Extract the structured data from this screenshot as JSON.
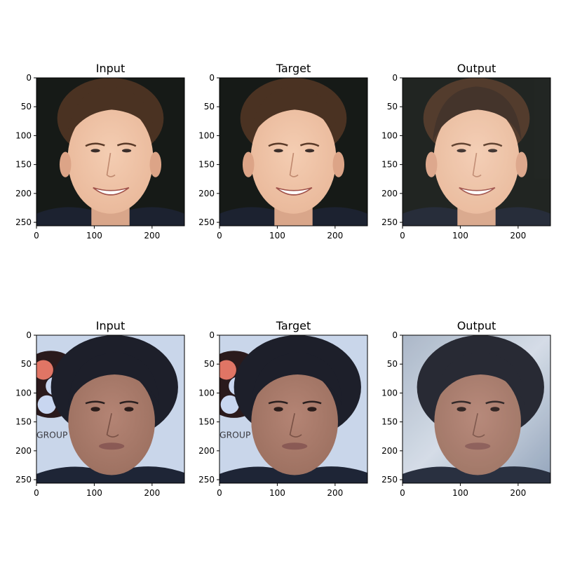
{
  "chart_data": [
    {
      "type": "image",
      "title": "Input",
      "row": 0,
      "col": 0,
      "xlim": [
        0,
        256
      ],
      "ylim": [
        256,
        0
      ],
      "xticks": [
        0,
        100,
        200
      ],
      "yticks": [
        0,
        50,
        100,
        150,
        200,
        250
      ],
      "content": "face-young-man-brown-hair-smiling-dark-background"
    },
    {
      "type": "image",
      "title": "Target",
      "row": 0,
      "col": 1,
      "xlim": [
        0,
        256
      ],
      "ylim": [
        256,
        0
      ],
      "xticks": [
        0,
        100,
        200
      ],
      "yticks": [
        0,
        50,
        100,
        150,
        200,
        250
      ],
      "content": "face-young-man-brown-hair-smiling-dark-background"
    },
    {
      "type": "image",
      "title": "Output",
      "row": 0,
      "col": 2,
      "xlim": [
        0,
        256
      ],
      "ylim": [
        256,
        0
      ],
      "xticks": [
        0,
        100,
        200
      ],
      "yticks": [
        0,
        50,
        100,
        150,
        200,
        250
      ],
      "content": "face-young-man-brown-hair-smiling-dark-background-smoothed"
    },
    {
      "type": "image",
      "title": "Input",
      "row": 1,
      "col": 0,
      "xlim": [
        0,
        256
      ],
      "ylim": [
        256,
        0
      ],
      "xticks": [
        0,
        100,
        200
      ],
      "yticks": [
        0,
        50,
        100,
        150,
        200,
        250
      ],
      "content": "face-man-dark-curly-hair-light-background-with-logo",
      "background_text": "GROUP"
    },
    {
      "type": "image",
      "title": "Target",
      "row": 1,
      "col": 1,
      "xlim": [
        0,
        256
      ],
      "ylim": [
        256,
        0
      ],
      "xticks": [
        0,
        100,
        200
      ],
      "yticks": [
        0,
        50,
        100,
        150,
        200,
        250
      ],
      "content": "face-man-dark-curly-hair-light-background-with-logo",
      "background_text": "GROUP"
    },
    {
      "type": "image",
      "title": "Output",
      "row": 1,
      "col": 2,
      "xlim": [
        0,
        256
      ],
      "ylim": [
        256,
        0
      ],
      "xticks": [
        0,
        100,
        200
      ],
      "yticks": [
        0,
        50,
        100,
        150,
        200,
        250
      ],
      "content": "face-man-dark-curly-hair-blurred-blue-background"
    }
  ],
  "colors": {
    "frame": "#000000",
    "dark_background": "#161a17",
    "light_background": "#c9d6ea",
    "blurred_background": "#b8c4d6",
    "skin_light": "#e9b89a",
    "skin_dark": "#9c7060",
    "hair_brown": "#4a3222",
    "hair_black": "#1d1f2a",
    "shirt_dark": "#1e2536"
  }
}
